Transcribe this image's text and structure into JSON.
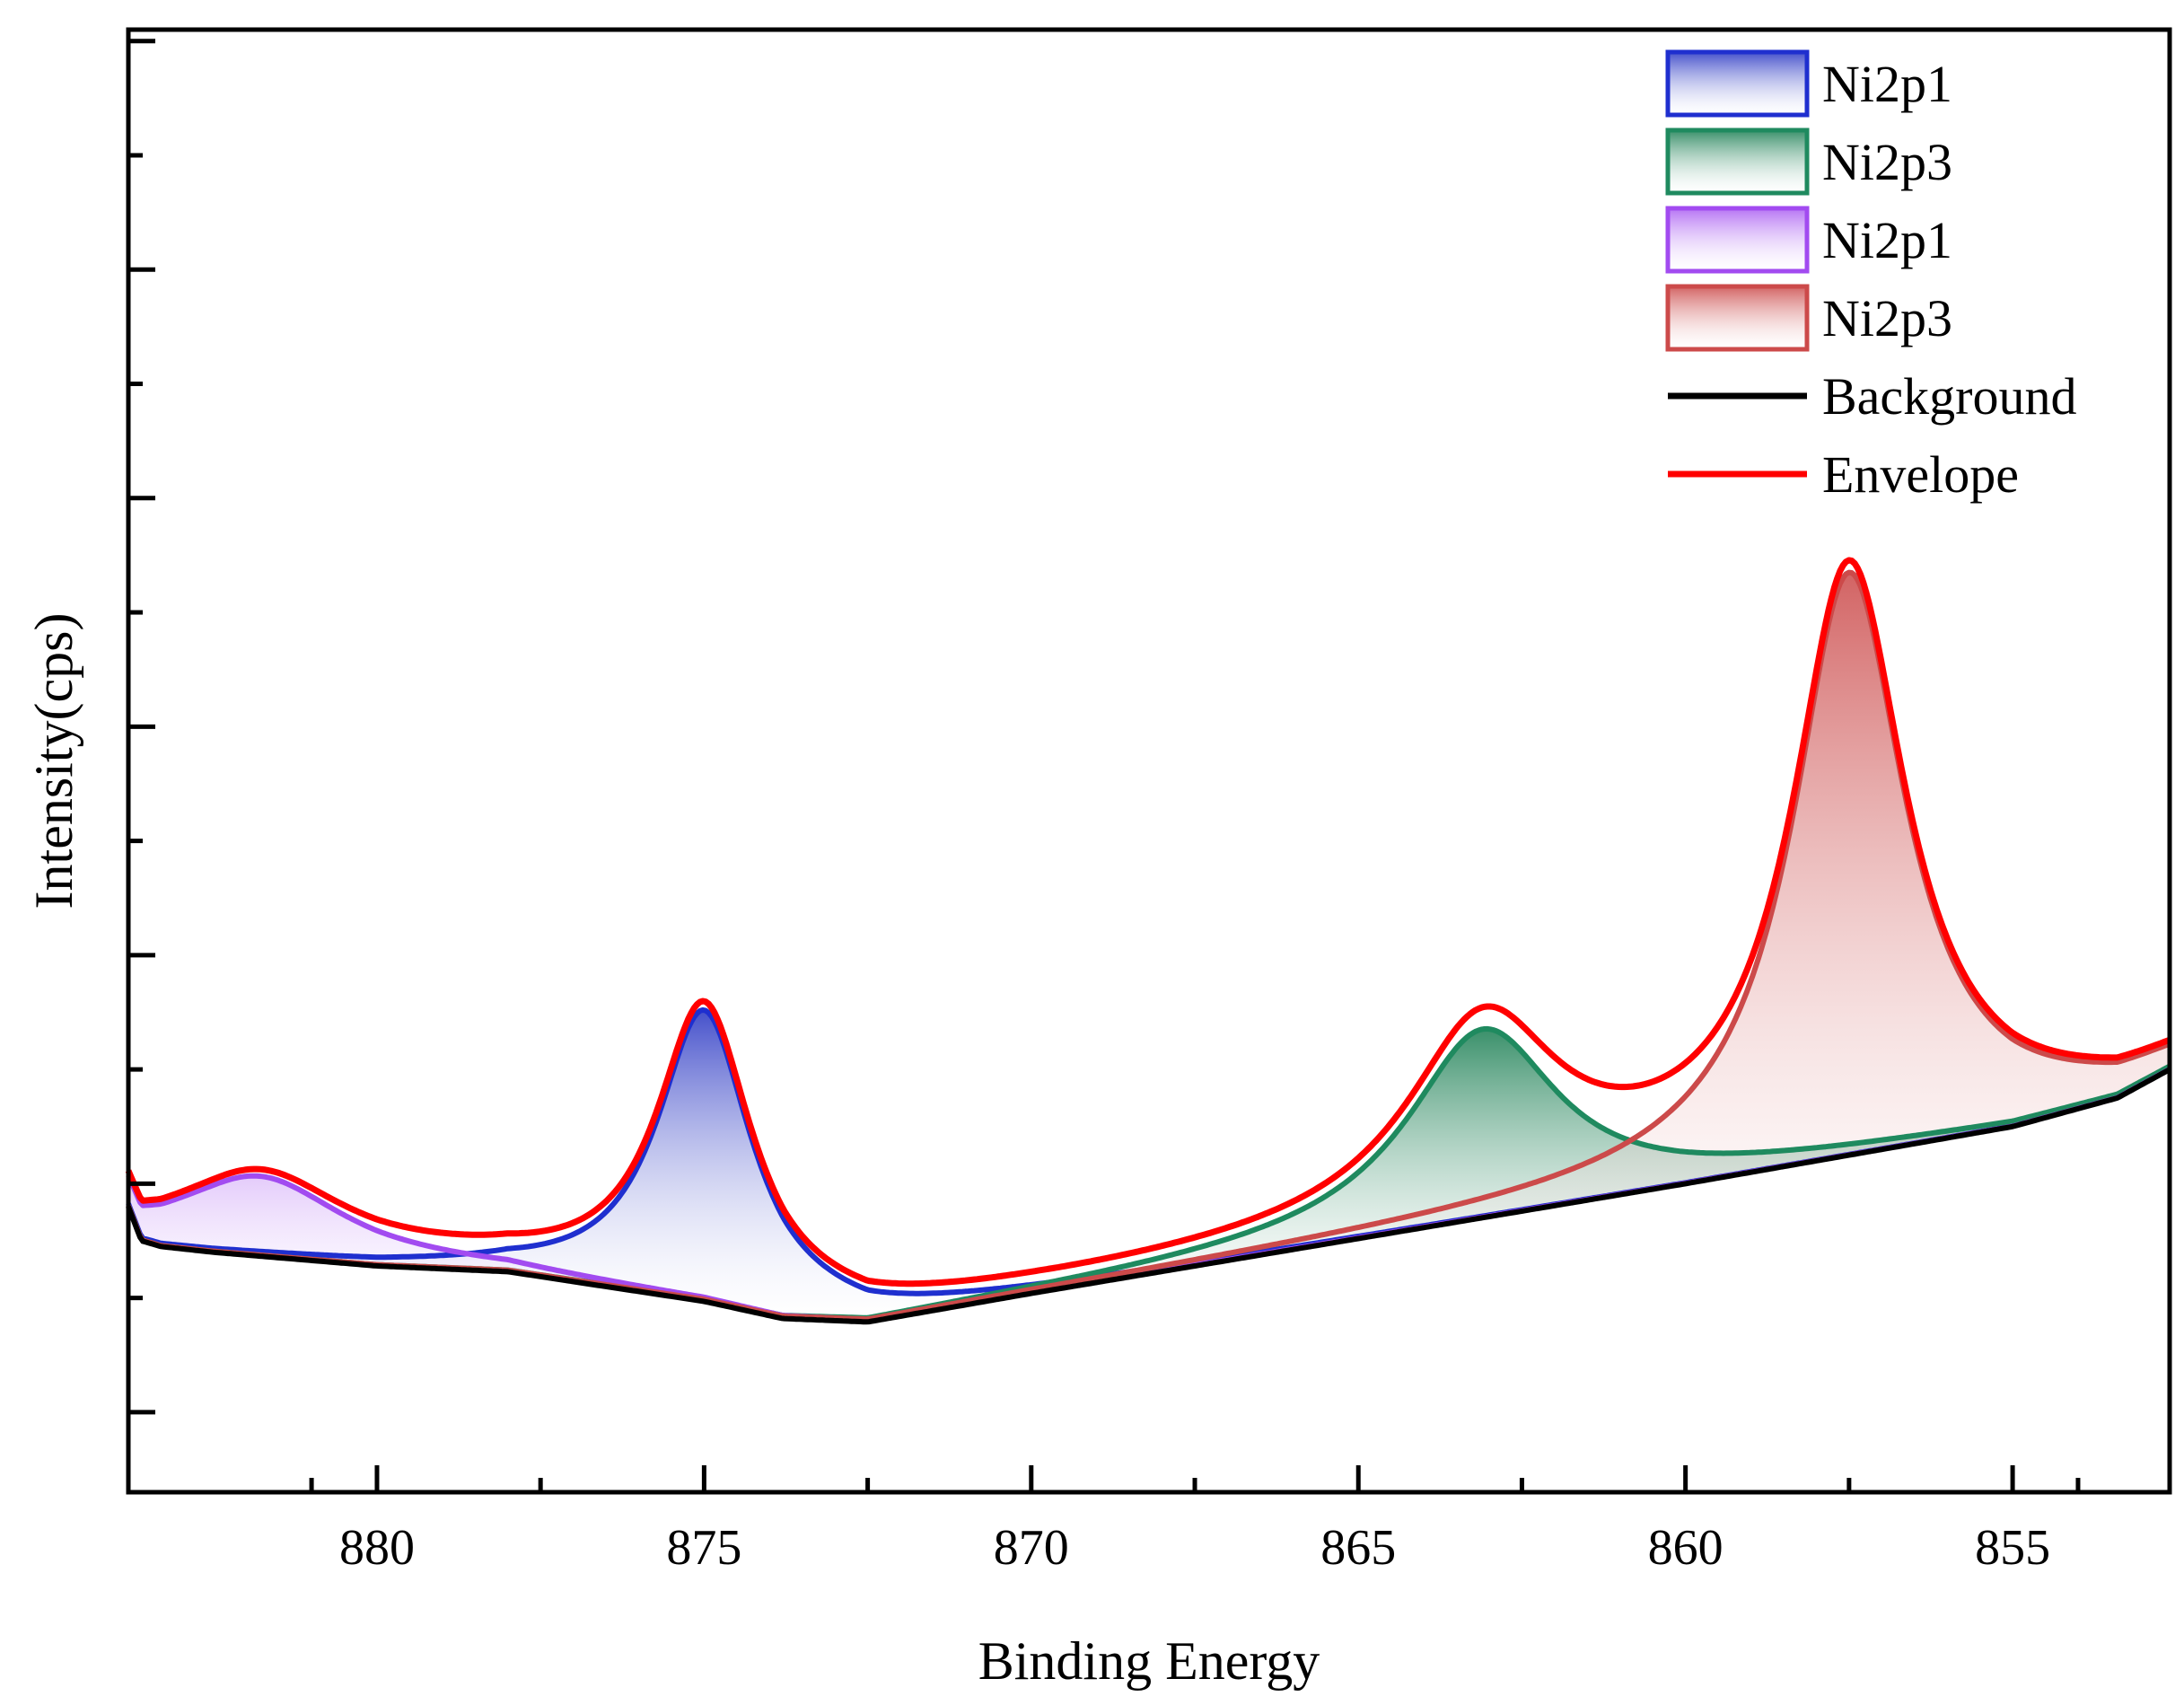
{
  "chart_data": {
    "type": "line",
    "title": "",
    "xlabel": "Binding Energy",
    "ylabel": "Intensity(cps)",
    "xlim": [
      883.8,
      852.6
    ],
    "ylim": [
      0,
      12.8
    ],
    "x_ticks": [
      880,
      875,
      870,
      865,
      860,
      855
    ],
    "x_tick_labels": [
      "880",
      "875",
      "870",
      "865",
      "860",
      "855"
    ],
    "y_major_ticks": [
      0.7,
      2.7,
      4.7,
      6.7,
      8.7,
      10.7,
      12.7
    ],
    "y_minor_ticks": [
      1.7,
      3.7,
      5.7,
      7.7,
      9.7,
      11.7
    ],
    "legend": [
      {
        "label": "Ni2p1",
        "kind": "area",
        "color": "#1f2fcf",
        "fill_top": "#3b47c8"
      },
      {
        "label": "Ni2p3",
        "kind": "area",
        "color": "#1f8a5f",
        "fill_top": "#2f8a62"
      },
      {
        "label": "Ni2p1",
        "kind": "area",
        "color": "#a24bf0",
        "fill_top": "#b26cf3"
      },
      {
        "label": "Ni2p3",
        "kind": "area",
        "color": "#cc4a4a",
        "fill_top": "#d05b5b"
      },
      {
        "label": "Background",
        "kind": "line",
        "color": "#000000"
      },
      {
        "label": "Envelope",
        "kind": "line",
        "color": "#ff0000"
      }
    ],
    "background": {
      "x": [
        883.8,
        883.6,
        883.3,
        882.5,
        880.0,
        878.0,
        875.0,
        873.8,
        872.5,
        870.0,
        865.0,
        860.0,
        855.0,
        853.4,
        852.6
      ],
      "y": [
        2.5,
        2.2,
        2.15,
        2.1,
        1.98,
        1.93,
        1.67,
        1.52,
        1.49,
        1.74,
        2.22,
        2.7,
        3.2,
        3.45,
        3.7
      ]
    },
    "series": [
      {
        "name": "Ni2p1",
        "color": "#1f2fcf",
        "fill_top": "#3b47c8",
        "center": 875.0,
        "height": 2.55,
        "width": 0.88
      },
      {
        "name": "Ni2p3",
        "color": "#1f8a5f",
        "fill_top": "#2f8a62",
        "center": 863.1,
        "height": 1.65,
        "width": 1.4
      },
      {
        "name": "Ni2p1",
        "color": "#a24bf0",
        "fill_top": "#b26cf3",
        "center": 881.8,
        "height": 0.7,
        "width": 1.6
      },
      {
        "name": "Ni2p3",
        "color": "#cc4a4a",
        "fill_top": "#d05b5b",
        "center": 857.5,
        "height": 5.1,
        "width": 1.05
      }
    ],
    "envelope": {
      "name": "Envelope",
      "color": "#ff0000"
    }
  }
}
